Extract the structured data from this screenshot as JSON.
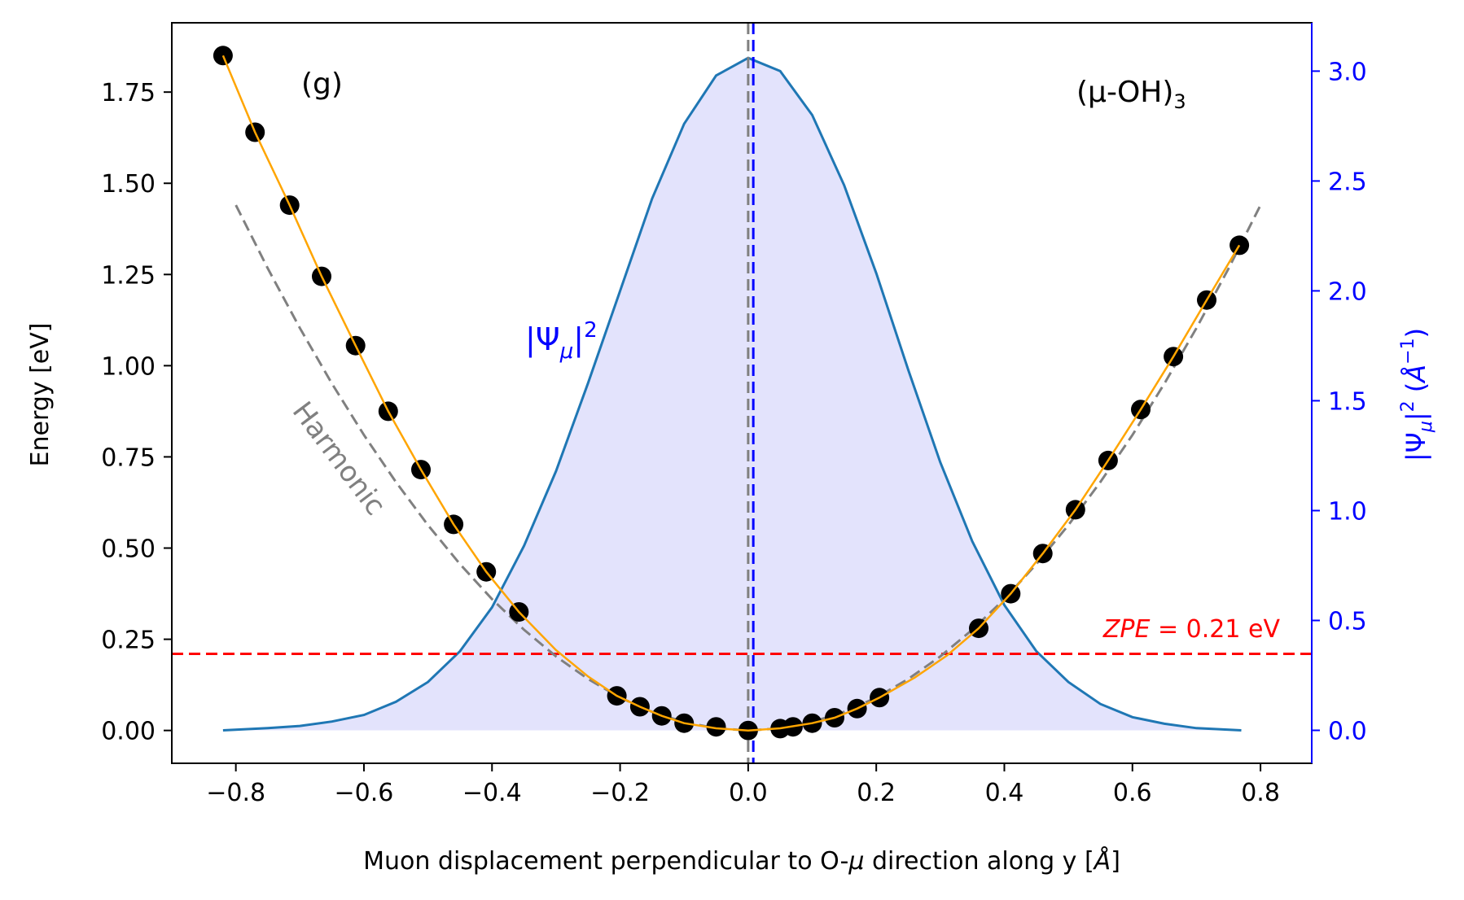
{
  "chart_data": {
    "type": "scatter",
    "panel_label": "(g)",
    "species_label_main": "(μ-OH)",
    "species_label_sub": "3",
    "xlabel_prefix": "Muon displacement perpendicular to O-",
    "xlabel_mu": "μ",
    "xlabel_suffix": " direction along y [",
    "xlabel_unit": "Å",
    "xlabel_close": "]",
    "ylabel": "Energy [eV]",
    "y2label_main": "|Ψ",
    "y2label_sub": "μ",
    "y2label_sup": "2",
    "y2label_unit_open": " (",
    "y2label_unit": "Å",
    "y2label_unit_sup": "−1",
    "y2label_unit_close": ")",
    "xlim": [
      -0.9,
      0.88
    ],
    "ylim": [
      -0.09,
      1.94
    ],
    "y2lim": [
      -0.15,
      3.22
    ],
    "xticks": [
      -0.8,
      -0.6,
      -0.4,
      -0.2,
      0.0,
      0.2,
      0.4,
      0.6,
      0.8
    ],
    "xtick_labels": [
      "−0.8",
      "−0.6",
      "−0.4",
      "−0.2",
      "0.0",
      "0.2",
      "0.4",
      "0.6",
      "0.8"
    ],
    "yticks": [
      0.0,
      0.25,
      0.5,
      0.75,
      1.0,
      1.25,
      1.5,
      1.75
    ],
    "ytick_labels": [
      "0.00",
      "0.25",
      "0.50",
      "0.75",
      "1.00",
      "1.25",
      "1.50",
      "1.75"
    ],
    "y2ticks": [
      0.0,
      0.5,
      1.0,
      1.5,
      2.0,
      2.5,
      3.0
    ],
    "y2tick_labels": [
      "0.0",
      "0.5",
      "1.0",
      "1.5",
      "2.0",
      "2.5",
      "3.0"
    ],
    "series": [
      {
        "role": "computed_points",
        "color": "#000000",
        "x": [
          -0.82,
          -0.77,
          -0.716,
          -0.666,
          -0.613,
          -0.562,
          -0.511,
          -0.46,
          -0.409,
          -0.358,
          -0.205,
          -0.169,
          -0.135,
          -0.1,
          -0.05,
          0.0,
          0.05,
          0.07,
          0.1,
          0.135,
          0.17,
          0.205,
          0.36,
          0.41,
          0.46,
          0.511,
          0.562,
          0.613,
          0.664,
          0.716,
          0.767
        ],
        "y": [
          1.85,
          1.64,
          1.44,
          1.245,
          1.055,
          0.875,
          0.715,
          0.565,
          0.435,
          0.325,
          0.095,
          0.065,
          0.04,
          0.02,
          0.01,
          0.0,
          0.005,
          0.01,
          0.02,
          0.035,
          0.06,
          0.09,
          0.28,
          0.375,
          0.485,
          0.605,
          0.74,
          0.88,
          1.025,
          1.18,
          1.33
        ]
      },
      {
        "role": "fit_curve",
        "color": "#ffa500",
        "x": [
          -0.82,
          -0.77,
          -0.716,
          -0.666,
          -0.613,
          -0.562,
          -0.511,
          -0.46,
          -0.409,
          -0.358,
          -0.3,
          -0.25,
          -0.205,
          -0.169,
          -0.135,
          -0.1,
          -0.05,
          0.0,
          0.05,
          0.1,
          0.135,
          0.17,
          0.205,
          0.26,
          0.31,
          0.36,
          0.41,
          0.46,
          0.511,
          0.562,
          0.613,
          0.664,
          0.716,
          0.767
        ],
        "y": [
          1.85,
          1.64,
          1.44,
          1.245,
          1.055,
          0.875,
          0.715,
          0.565,
          0.435,
          0.325,
          0.22,
          0.148,
          0.095,
          0.065,
          0.04,
          0.02,
          0.006,
          0.0,
          0.006,
          0.02,
          0.035,
          0.06,
          0.09,
          0.145,
          0.205,
          0.28,
          0.375,
          0.485,
          0.605,
          0.74,
          0.88,
          1.025,
          1.18,
          1.33
        ]
      },
      {
        "role": "harmonic",
        "color": "#808080",
        "x": [
          -0.8,
          -0.75,
          -0.7,
          -0.65,
          -0.6,
          -0.55,
          -0.5,
          -0.45,
          -0.4,
          -0.35,
          -0.3,
          -0.25,
          -0.2,
          -0.15,
          -0.1,
          -0.05,
          0.0,
          0.05,
          0.1,
          0.15,
          0.2,
          0.25,
          0.3,
          0.35,
          0.4,
          0.45,
          0.5,
          0.55,
          0.6,
          0.65,
          0.7,
          0.75,
          0.8
        ],
        "y": [
          1.44,
          1.266,
          1.103,
          0.951,
          0.81,
          0.681,
          0.563,
          0.456,
          0.36,
          0.276,
          0.203,
          0.141,
          0.09,
          0.051,
          0.023,
          0.006,
          0.0,
          0.006,
          0.023,
          0.051,
          0.09,
          0.141,
          0.203,
          0.276,
          0.36,
          0.456,
          0.563,
          0.681,
          0.81,
          0.951,
          1.103,
          1.266,
          1.44
        ]
      },
      {
        "role": "wavefunction",
        "axis": "right",
        "color": "#1f77b4",
        "fill": "#e3e3fc",
        "x": [
          -0.82,
          -0.75,
          -0.7,
          -0.65,
          -0.6,
          -0.55,
          -0.5,
          -0.45,
          -0.4,
          -0.35,
          -0.3,
          -0.25,
          -0.2,
          -0.15,
          -0.1,
          -0.05,
          0.0,
          0.05,
          0.1,
          0.15,
          0.2,
          0.25,
          0.3,
          0.35,
          0.4,
          0.45,
          0.5,
          0.55,
          0.6,
          0.65,
          0.7,
          0.77
        ],
        "y": [
          0.0,
          0.01,
          0.02,
          0.04,
          0.07,
          0.13,
          0.22,
          0.36,
          0.56,
          0.84,
          1.18,
          1.58,
          2.0,
          2.42,
          2.76,
          2.98,
          3.06,
          3.0,
          2.8,
          2.48,
          2.08,
          1.64,
          1.22,
          0.86,
          0.57,
          0.36,
          0.22,
          0.12,
          0.06,
          0.03,
          0.01,
          0.0
        ]
      }
    ],
    "zpe_value": 0.21,
    "zpe_label_italic": "ZPE",
    "zpe_label_rest": " = 0.21 eV",
    "vline_gray_x": 0.0,
    "vline_blue_x": 0.008,
    "harmonic_label": "Harmonic",
    "psi_label_main": "|Ψ",
    "psi_label_sub": "μ",
    "psi_label_sup": "2",
    "colors": {
      "axis": "#000000",
      "right_axis": "#0000ff",
      "zpe": "#ff0000",
      "harmonic_text": "#808080",
      "vline_gray": "#808080",
      "vline_blue": "#0000ff"
    }
  }
}
